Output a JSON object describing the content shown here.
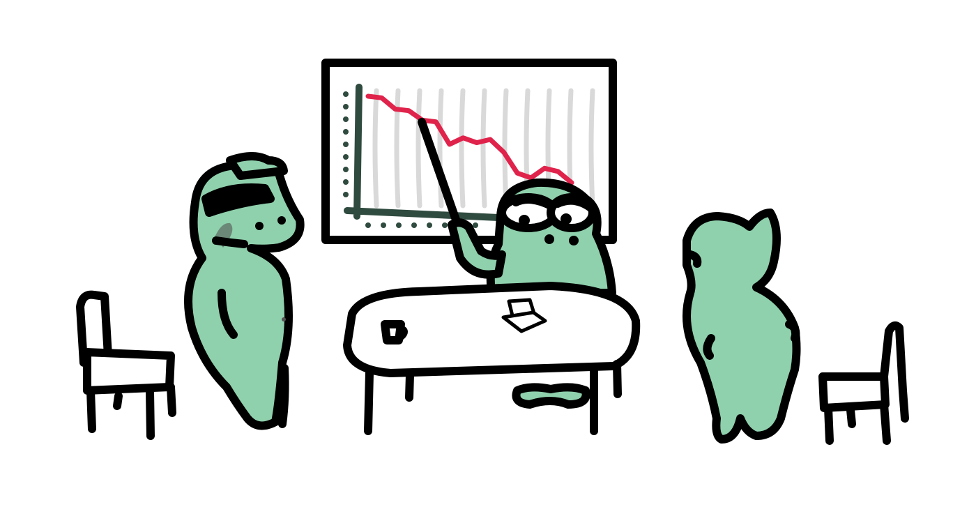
{
  "colors": {
    "background": "#ffffff",
    "ink": "#000000",
    "frog_skin": "#8fd1ad",
    "chart_line": "#e0234b",
    "chart_axis": "#2f4a3f",
    "chart_grid": "#d9d9d9",
    "headset_gray": "#5f6d66"
  },
  "chart_data": {
    "type": "line",
    "title": "",
    "xlabel": "",
    "ylabel": "",
    "grid": true,
    "series": [
      {
        "values": [
          10,
          9.9,
          9.2,
          9.1,
          8.5,
          8.4,
          7.0,
          7.4,
          7.1,
          7.3,
          6.5,
          5.2,
          4.9,
          5.5,
          5.3,
          4.6
        ]
      }
    ]
  },
  "scene": {
    "characters": [
      "frog-with-headset",
      "frog-presenter",
      "frog-looking-away"
    ],
    "objects": [
      "left-chair",
      "right-chair",
      "meeting-table",
      "coffee-mug",
      "papers",
      "whiteboard",
      "pointer-stick"
    ]
  }
}
